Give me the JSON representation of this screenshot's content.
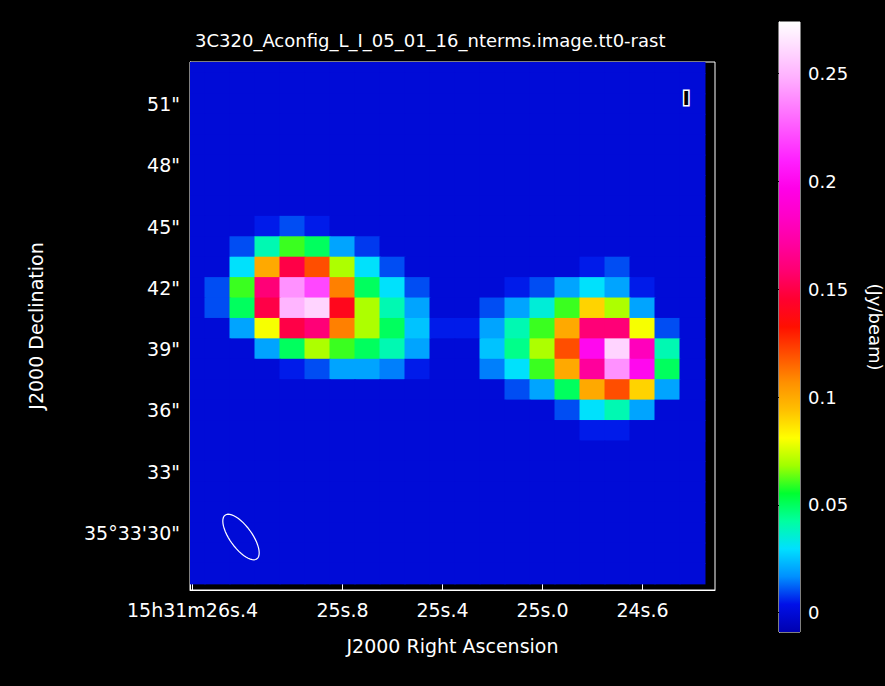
{
  "chart_data": {
    "type": "heatmap",
    "title": "3C320_Aconfig_L_I_05_01_16_nterms.image.tt0-rast",
    "x_label": "J2000 Right Ascension",
    "y_label": "J2000 Declination",
    "xlim": [
      26.41,
      24.31
    ],
    "ylim": [
      27.2,
      53.06
    ],
    "xticks": [
      {
        "value": 26.4,
        "label": "15h31m26s.4"
      },
      {
        "value": 25.8,
        "label": "25s.8"
      },
      {
        "value": 25.4,
        "label": "25s.4"
      },
      {
        "value": 25.0,
        "label": "25s.0"
      },
      {
        "value": 24.6,
        "label": "24s.6"
      }
    ],
    "yticks": [
      {
        "value": 30,
        "label": "35°33'30\""
      },
      {
        "value": 33,
        "label": "33\""
      },
      {
        "value": 36,
        "label": "36\""
      },
      {
        "value": 39,
        "label": "39\""
      },
      {
        "value": 42,
        "label": "42\""
      },
      {
        "value": 45,
        "label": "45\""
      },
      {
        "value": 48,
        "label": "48\""
      },
      {
        "value": 51,
        "label": "51\""
      }
    ],
    "grid": false,
    "annotations": [
      "I"
    ],
    "cells": {
      "x": [
        26.4,
        26.3,
        26.2,
        26.1,
        26.0,
        25.9,
        25.8,
        25.7,
        25.6,
        25.5,
        25.4,
        25.3,
        25.2,
        25.1,
        25.0,
        24.9,
        24.8,
        24.7,
        24.6,
        24.5,
        24.4
      ],
      "y": [
        53,
        52,
        51,
        50,
        49,
        48,
        47,
        46,
        45,
        44,
        43,
        42,
        41,
        40,
        39,
        38,
        37,
        36,
        35,
        34,
        33,
        32,
        31,
        30,
        29,
        28
      ],
      "values": [
        [
          0,
          0,
          0,
          0,
          0,
          0,
          0,
          0,
          0,
          0,
          0,
          0,
          0,
          0,
          0,
          0,
          0,
          0,
          0,
          0,
          0
        ],
        [
          0,
          0,
          0,
          0,
          0,
          0,
          0,
          0,
          0,
          0,
          0,
          0,
          0,
          0,
          0,
          0,
          0,
          0,
          0,
          0,
          0
        ],
        [
          0,
          0,
          0,
          0,
          0,
          0,
          0,
          0,
          0,
          0,
          0,
          0,
          0,
          0,
          0,
          0,
          0,
          0,
          0,
          0,
          0
        ],
        [
          0,
          0,
          0,
          0,
          0,
          0,
          0,
          0,
          0,
          0,
          0,
          0,
          0,
          0,
          0,
          0,
          0,
          0,
          0,
          0,
          0
        ],
        [
          0,
          0,
          0,
          0,
          0,
          0,
          0,
          0,
          0,
          0,
          0,
          0,
          0,
          0,
          0,
          0,
          0,
          0,
          0,
          0,
          0
        ],
        [
          0,
          0,
          0,
          0,
          0,
          0,
          0,
          0,
          0,
          0,
          0,
          0,
          0,
          0,
          0,
          0,
          0,
          0,
          0,
          0,
          0
        ],
        [
          0,
          0,
          0,
          0,
          0,
          0,
          0,
          0,
          0,
          0,
          0,
          0,
          0,
          0,
          0,
          0,
          0,
          0,
          0,
          0,
          0
        ],
        [
          0,
          0,
          0,
          0,
          0,
          0,
          0,
          0,
          0,
          0,
          0,
          0,
          0,
          0,
          0,
          0,
          0,
          0,
          0,
          0,
          0
        ],
        [
          0,
          0,
          0,
          0.005,
          0.01,
          0.005,
          0,
          0,
          0,
          0,
          0,
          0,
          0,
          0,
          0,
          0,
          0,
          0,
          0,
          0,
          0
        ],
        [
          0,
          0,
          0.01,
          0.04,
          0.06,
          0.05,
          0.02,
          0.008,
          0,
          0,
          0,
          0,
          0,
          0,
          0,
          0,
          0,
          0,
          0,
          0,
          0
        ],
        [
          0,
          0,
          0.03,
          0.1,
          0.15,
          0.12,
          0.07,
          0.03,
          0.01,
          0,
          0,
          0,
          0,
          0,
          0,
          0,
          0.005,
          0.01,
          0,
          0,
          0
        ],
        [
          0,
          0.01,
          0.06,
          0.16,
          0.24,
          0.22,
          0.11,
          0.05,
          0.03,
          0.01,
          0,
          0,
          0,
          0.005,
          0.01,
          0.02,
          0.03,
          0.02,
          0.005,
          0,
          0
        ],
        [
          0,
          0.01,
          0.05,
          0.15,
          0.25,
          0.26,
          0.14,
          0.07,
          0.04,
          0.02,
          0,
          0,
          0.01,
          0.02,
          0.035,
          0.06,
          0.09,
          0.07,
          0.02,
          0,
          0
        ],
        [
          0,
          0,
          0.02,
          0.08,
          0.15,
          0.16,
          0.11,
          0.07,
          0.05,
          0.025,
          0.005,
          0.005,
          0.02,
          0.04,
          0.06,
          0.1,
          0.16,
          0.16,
          0.08,
          0.01,
          0
        ],
        [
          0,
          0,
          0,
          0.02,
          0.05,
          0.07,
          0.06,
          0.05,
          0.04,
          0.02,
          0,
          0,
          0.025,
          0.045,
          0.07,
          0.12,
          0.2,
          0.26,
          0.18,
          0.04,
          0
        ],
        [
          0,
          0,
          0,
          0,
          0.005,
          0.01,
          0.02,
          0.02,
          0.015,
          0.005,
          0,
          0,
          0.015,
          0.03,
          0.06,
          0.1,
          0.17,
          0.24,
          0.2,
          0.05,
          0
        ],
        [
          0,
          0,
          0,
          0,
          0,
          0,
          0,
          0,
          0,
          0,
          0,
          0,
          0,
          0.01,
          0.02,
          0.05,
          0.1,
          0.12,
          0.09,
          0.02,
          0
        ],
        [
          0,
          0,
          0,
          0,
          0,
          0,
          0,
          0,
          0,
          0,
          0,
          0,
          0,
          0,
          0,
          0.01,
          0.03,
          0.04,
          0.02,
          0,
          0
        ],
        [
          0,
          0,
          0,
          0,
          0,
          0,
          0,
          0,
          0,
          0,
          0,
          0,
          0,
          0,
          0,
          0,
          0.005,
          0.005,
          0,
          0,
          0
        ],
        [
          0,
          0,
          0,
          0,
          0,
          0,
          0,
          0,
          0,
          0,
          0,
          0,
          0,
          0,
          0,
          0,
          0,
          0,
          0,
          0,
          0
        ],
        [
          0,
          0,
          0,
          0,
          0,
          0,
          0,
          0,
          0,
          0,
          0,
          0,
          0,
          0,
          0,
          0,
          0,
          0,
          0,
          0,
          0
        ],
        [
          0,
          0,
          0,
          0,
          0,
          0,
          0,
          0,
          0,
          0,
          0,
          0,
          0,
          0,
          0,
          0,
          0,
          0,
          0,
          0,
          0
        ],
        [
          0,
          0,
          0,
          0,
          0,
          0,
          0,
          0,
          0,
          0,
          0,
          0,
          0,
          0,
          0,
          0,
          0,
          0,
          0,
          0,
          0
        ],
        [
          0,
          0,
          0,
          0,
          0,
          0,
          0,
          0,
          0,
          0,
          0,
          0,
          0,
          0,
          0,
          0,
          0,
          0,
          0,
          0,
          0
        ],
        [
          0,
          0,
          0,
          0,
          0,
          0,
          0,
          0,
          0,
          0,
          0,
          0,
          0,
          0,
          0,
          0,
          0,
          0,
          0,
          0,
          0
        ],
        [
          0,
          0,
          0,
          0,
          0,
          0,
          0,
          0,
          0,
          0,
          0,
          0,
          0,
          0,
          0,
          0,
          0,
          0,
          0,
          0,
          0
        ]
      ]
    },
    "colorbar": {
      "label": "(Jy/beam)",
      "lim": [
        -0.009,
        0.274
      ],
      "ticks": [
        0,
        0.05,
        0.1,
        0.15,
        0.2,
        0.25
      ]
    }
  }
}
